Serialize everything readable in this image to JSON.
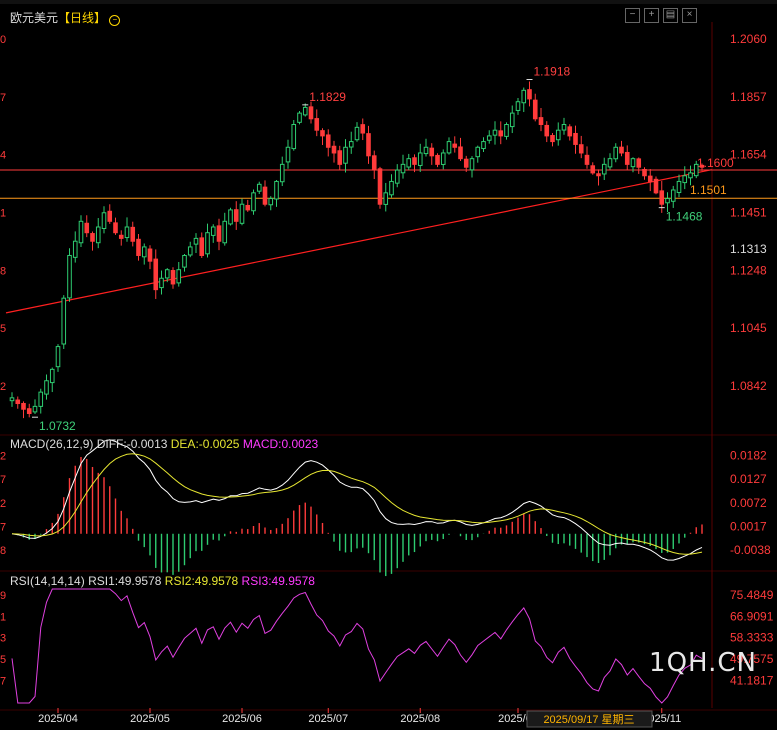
{
  "title": "欧元美元",
  "period": "【日线】",
  "header_icons": [
    "minus-icon",
    "plus-icon",
    "settings-icon",
    "close-icon"
  ],
  "watermark": "1QH.CN",
  "crosshair_label": "2025/09/17 星期三",
  "colors": {
    "up": "#2ecc71",
    "down": "#ff3b3b",
    "diff": "#ffffff",
    "dea": "#e6e632",
    "macd": "#ff3bff",
    "rsi": "#e040e0",
    "grid": "#3a0000",
    "axis": "#ff3b3b"
  },
  "chart_data": [
    {
      "type": "candlestick",
      "name": "欧元美元",
      "x_ticks": [
        "2025/04",
        "2025/05",
        "2025/06",
        "2025/07",
        "2025/08",
        "2025/09",
        "2025/11"
      ],
      "y_ticks": [
        "1.2060",
        "1.1857",
        "1.1654",
        "1.1451",
        "1.1248",
        "1.1045",
        "1.0842"
      ],
      "left_ticks": [
        "0",
        "7",
        "4",
        "1",
        "8",
        "5",
        "2"
      ],
      "ylim": [
        1.068,
        1.212
      ],
      "current_price": "1.1313",
      "annotations": [
        {
          "label": "1.0732",
          "price": 1.0732,
          "bar": 4
        },
        {
          "label": "1.1829",
          "price": 1.1829,
          "bar": 51
        },
        {
          "label": "1.1918",
          "price": 1.1918,
          "bar": 90
        },
        {
          "label": "1.1468",
          "price": 1.1468,
          "bar": 113
        }
      ],
      "hlines": [
        {
          "label": "1.1600",
          "price": 1.16,
          "color": "#ff3b3b"
        },
        {
          "label": "1.1501",
          "price": 1.1501,
          "color": "#ff9a1a"
        }
      ],
      "trendline": {
        "from": {
          "bar": 0,
          "price": 1.11
        },
        "to": {
          "bar": 121,
          "price": 1.16
        }
      },
      "closes": [
        1.08,
        1.078,
        1.076,
        1.0745,
        1.077,
        1.082,
        1.086,
        1.09,
        1.098,
        1.115,
        1.13,
        1.135,
        1.142,
        1.138,
        1.135,
        1.14,
        1.145,
        1.142,
        1.138,
        1.136,
        1.14,
        1.135,
        1.13,
        1.133,
        1.128,
        1.118,
        1.122,
        1.125,
        1.12,
        1.125,
        1.13,
        1.133,
        1.136,
        1.13,
        1.138,
        1.14,
        1.135,
        1.142,
        1.146,
        1.142,
        1.148,
        1.146,
        1.152,
        1.155,
        1.148,
        1.15,
        1.156,
        1.162,
        1.168,
        1.176,
        1.18,
        1.182,
        1.178,
        1.174,
        1.172,
        1.168,
        1.166,
        1.162,
        1.168,
        1.17,
        1.175,
        1.173,
        1.165,
        1.16,
        1.148,
        1.152,
        1.156,
        1.16,
        1.162,
        1.164,
        1.162,
        1.166,
        1.168,
        1.165,
        1.162,
        1.166,
        1.17,
        1.168,
        1.164,
        1.161,
        1.164,
        1.168,
        1.17,
        1.172,
        1.174,
        1.172,
        1.176,
        1.18,
        1.184,
        1.188,
        1.185,
        1.178,
        1.176,
        1.172,
        1.17,
        1.174,
        1.176,
        1.172,
        1.169,
        1.166,
        1.162,
        1.159,
        1.158,
        1.162,
        1.164,
        1.168,
        1.166,
        1.162,
        1.164,
        1.161,
        1.158,
        1.156,
        1.152,
        1.148,
        1.15,
        1.153,
        1.156,
        1.158,
        1.159,
        1.162,
        1.161
      ],
      "macd": {
        "legend": [
          "MACD(26,12,9)",
          "DIFF:-0.0013",
          "DEA:-0.0025",
          "MACD:0.0023"
        ],
        "y_ticks": [
          "0.0182",
          "0.0127",
          "0.0072",
          "0.0017",
          "-0.0038"
        ],
        "left_ticks": [
          "2",
          "7",
          "2",
          "7",
          "8"
        ],
        "ylim": [
          -0.0075,
          0.0195
        ]
      },
      "rsi": {
        "legend": [
          "RSI(14,14,14)",
          "RSI1:49.9578",
          "RSI2:49.9578",
          "RSI3:49.9578"
        ],
        "y_ticks": [
          "75.4849",
          "66.9091",
          "58.3333",
          "49.7575",
          "41.1817"
        ],
        "left_ticks": [
          "9",
          "1",
          "3",
          "5",
          "7"
        ],
        "ylim": [
          30,
          80
        ]
      }
    }
  ]
}
